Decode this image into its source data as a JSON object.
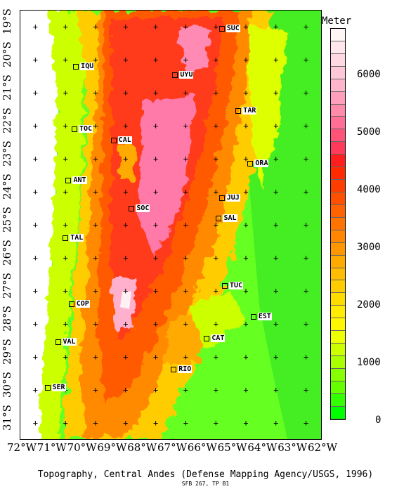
{
  "map": {
    "latitude_labels": [
      "19°S",
      "20°S",
      "21°S",
      "22°S",
      "23°S",
      "24°S",
      "25°S",
      "26°S",
      "27°S",
      "28°S",
      "29°S",
      "30°S",
      "31°S"
    ],
    "longitude_labels": [
      "72°W",
      "71°W",
      "70°W",
      "69°W",
      "68°W",
      "67°W",
      "66°W",
      "65°W",
      "64°W",
      "63°W",
      "62°W"
    ],
    "cities": [
      {
        "name": "SUC",
        "lon": -65.3,
        "lat": -19.05
      },
      {
        "name": "IQU",
        "lon": -70.15,
        "lat": -20.2
      },
      {
        "name": "UYU",
        "lon": -66.85,
        "lat": -20.45
      },
      {
        "name": "TAR",
        "lon": -64.75,
        "lat": -21.55
      },
      {
        "name": "TOC",
        "lon": -70.2,
        "lat": -22.1
      },
      {
        "name": "CAL",
        "lon": -68.9,
        "lat": -22.45
      },
      {
        "name": "ORA",
        "lon": -64.35,
        "lat": -23.15
      },
      {
        "name": "ANT",
        "lon": -70.4,
        "lat": -23.65
      },
      {
        "name": "JUJ",
        "lon": -65.3,
        "lat": -24.2
      },
      {
        "name": "SOC",
        "lon": -68.3,
        "lat": -24.5
      },
      {
        "name": "SAL",
        "lon": -65.4,
        "lat": -24.8
      },
      {
        "name": "TAL",
        "lon": -70.5,
        "lat": -25.4
      },
      {
        "name": "TUC",
        "lon": -65.2,
        "lat": -26.85
      },
      {
        "name": "COP",
        "lon": -70.3,
        "lat": -27.4
      },
      {
        "name": "EST",
        "lon": -64.25,
        "lat": -27.8
      },
      {
        "name": "CAT",
        "lon": -65.8,
        "lat": -28.45
      },
      {
        "name": "VAL",
        "lon": -70.75,
        "lat": -28.55
      },
      {
        "name": "RIO",
        "lon": -66.9,
        "lat": -29.4
      },
      {
        "name": "SER",
        "lon": -71.1,
        "lat": -29.95
      }
    ]
  },
  "legend": {
    "title": "Meter",
    "ticks": [
      "6000",
      "5000",
      "4000",
      "3000",
      "2000",
      "1000",
      "0"
    ],
    "colors": [
      "#fff5f5",
      "#ffe6ec",
      "#ffd8e2",
      "#ffc8d8",
      "#ffb6cc",
      "#ff9fbc",
      "#ff8aaa",
      "#ff6f95",
      "#ff5478",
      "#ff3a5a",
      "#ff1e1e",
      "#ff2a00",
      "#ff3d00",
      "#ff5000",
      "#ff6200",
      "#ff7400",
      "#ff8600",
      "#ff9800",
      "#ffaa00",
      "#ffbc00",
      "#ffcc00",
      "#ffdc00",
      "#ffec00",
      "#fff600",
      "#eeff00",
      "#ccff00",
      "#aaff00",
      "#88ff00",
      "#66ff00",
      "#33ff00",
      "#00ff00"
    ]
  },
  "caption": "Topography, Central Andes (Defense Mapping Agency/USGS, 1996)",
  "subcaption": "SFB 267, TP B1"
}
